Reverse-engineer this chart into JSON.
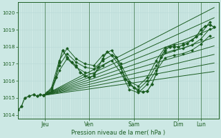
{
  "bg_color": "#cce8e4",
  "plot_bg": "#cce8e4",
  "grid_color_v": "#aaccca",
  "grid_color_h": "#bbdbd8",
  "line_color": "#1a5c20",
  "ylabel_text": "Pression niveau de la mer( hPa )",
  "ylim": [
    1013.8,
    1020.6
  ],
  "yticks": [
    1014,
    1015,
    1016,
    1017,
    1018,
    1019,
    1020
  ],
  "xlim": [
    0,
    9.0
  ],
  "day_ticks": [
    1.2,
    3.2,
    5.2,
    7.2,
    8.2
  ],
  "day_labels": [
    "Jeu",
    "Ven",
    "Sam",
    "Dim",
    "Lun"
  ],
  "day_vlines": [
    1.2,
    3.2,
    5.2,
    7.2,
    8.2
  ],
  "fan_origin_x": 1.15,
  "fan_origin_y": 1015.15,
  "fan_ends": [
    [
      8.8,
      1020.3
    ],
    [
      8.8,
      1019.7
    ],
    [
      8.8,
      1019.1
    ],
    [
      8.8,
      1018.55
    ],
    [
      8.8,
      1018.05
    ],
    [
      8.8,
      1017.55
    ],
    [
      8.8,
      1017.05
    ],
    [
      8.8,
      1016.55
    ]
  ],
  "main_line_x": [
    0.0,
    0.15,
    0.3,
    0.5,
    0.7,
    0.85,
    1.0,
    1.15,
    1.3,
    1.5,
    1.7,
    1.85,
    2.0,
    2.2,
    2.4,
    2.6,
    2.8,
    3.0,
    3.2,
    3.4,
    3.6,
    3.8,
    4.0,
    4.2,
    4.4,
    4.6,
    4.8,
    5.0,
    5.2,
    5.4,
    5.6,
    5.8,
    6.0,
    6.2,
    6.4,
    6.6,
    6.8,
    7.0,
    7.2,
    7.4,
    7.6,
    7.8,
    8.0,
    8.2,
    8.4,
    8.6,
    8.8
  ],
  "main_line_y": [
    1014.3,
    1014.5,
    1015.0,
    1015.1,
    1015.2,
    1015.1,
    1015.2,
    1015.15,
    1015.3,
    1015.5,
    1016.2,
    1017.1,
    1017.8,
    1017.4,
    1017.1,
    1016.9,
    1016.5,
    1016.3,
    1016.2,
    1016.3,
    1016.8,
    1017.3,
    1017.7,
    1017.5,
    1017.4,
    1016.8,
    1016.1,
    1015.9,
    1015.6,
    1015.4,
    1015.35,
    1015.4,
    1015.8,
    1016.4,
    1017.4,
    1017.8,
    1018.0,
    1018.0,
    1018.0,
    1018.1,
    1018.2,
    1018.4,
    1018.6,
    1019.0,
    1019.2,
    1019.3,
    1019.15
  ],
  "extra_lines": [
    {
      "x": [
        1.15,
        1.5,
        1.85,
        2.2,
        2.6,
        3.0,
        3.4,
        3.8,
        4.2,
        4.6,
        5.0,
        5.4,
        5.8,
        6.2,
        6.6,
        7.0,
        7.4,
        7.8,
        8.2,
        8.6
      ],
      "y": [
        1015.15,
        1015.6,
        1017.2,
        1017.9,
        1017.3,
        1017.0,
        1016.9,
        1017.5,
        1017.8,
        1017.0,
        1015.95,
        1015.7,
        1016.2,
        1017.2,
        1017.95,
        1018.1,
        1018.2,
        1018.4,
        1018.75,
        1019.45
      ]
    },
    {
      "x": [
        1.15,
        1.5,
        1.85,
        2.2,
        2.6,
        3.0,
        3.4,
        3.8,
        4.2,
        4.6,
        5.0,
        5.4,
        5.8,
        6.2,
        6.6,
        7.0,
        7.4,
        7.8,
        8.2,
        8.6
      ],
      "y": [
        1015.15,
        1015.5,
        1016.9,
        1017.6,
        1017.1,
        1016.8,
        1016.7,
        1017.2,
        1017.5,
        1016.8,
        1015.75,
        1015.5,
        1016.0,
        1016.9,
        1017.65,
        1017.8,
        1017.9,
        1018.1,
        1018.45,
        1019.05
      ]
    },
    {
      "x": [
        1.15,
        1.5,
        1.85,
        2.2,
        2.6,
        3.0,
        3.4,
        3.8,
        4.2,
        4.6,
        5.0,
        5.4,
        5.8,
        6.2,
        6.6,
        7.0,
        7.4,
        7.8,
        8.2,
        8.6
      ],
      "y": [
        1015.15,
        1015.4,
        1016.6,
        1017.3,
        1016.8,
        1016.5,
        1016.4,
        1016.9,
        1017.2,
        1016.5,
        1015.5,
        1015.3,
        1015.8,
        1016.6,
        1017.35,
        1017.5,
        1017.6,
        1017.8,
        1018.15,
        1018.65
      ]
    }
  ],
  "figsize": [
    3.2,
    2.0
  ],
  "dpi": 100
}
